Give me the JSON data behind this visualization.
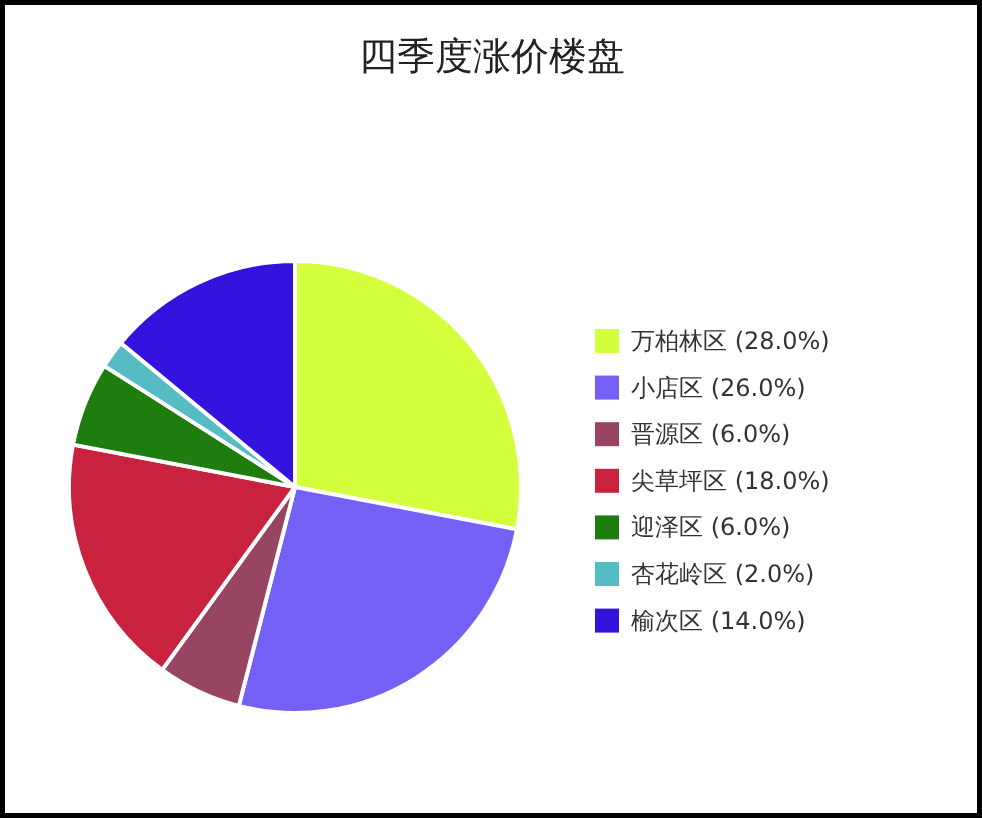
{
  "chart_data": {
    "type": "pie",
    "title": "四季度涨价楼盘",
    "categories": [
      "万柏林区",
      "小店区",
      "晋源区",
      "尖草坪区",
      "迎泽区",
      "杏花岭区",
      "榆次区"
    ],
    "values": [
      28,
      26,
      6,
      18,
      6,
      2,
      14
    ],
    "value_labels": [
      "(28.0%)",
      "(26.0%)",
      "(6.0%)",
      "(18.0%)",
      "(6.0%)",
      "(2.0%)",
      "(14.0%)"
    ],
    "colors": [
      "#d4ff3c",
      "#7460f5",
      "#984563",
      "#c8223f",
      "#1f7d10",
      "#56bcc4",
      "#3313dd"
    ],
    "legend": "right"
  }
}
